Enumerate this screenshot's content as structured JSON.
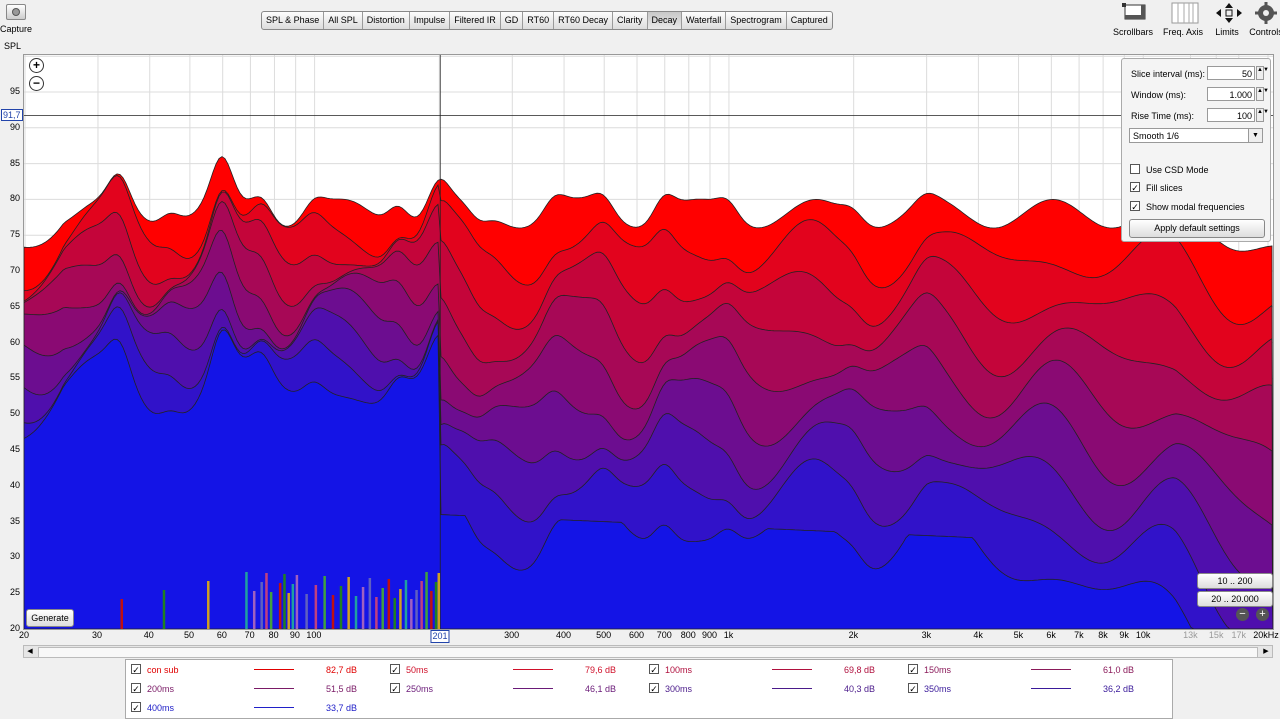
{
  "toolbar": {
    "capture_label": "Capture",
    "spl_label": "SPL",
    "tabs": [
      "SPL & Phase",
      "All SPL",
      "Distortion",
      "Impulse",
      "Filtered IR",
      "GD",
      "RT60",
      "RT60 Decay",
      "Clarity",
      "Decay",
      "Waterfall",
      "Spectrogram",
      "Captured"
    ],
    "active_tab": "Decay",
    "right_tools": [
      {
        "label": "Scrollbars",
        "icon": "scrollbars-icon"
      },
      {
        "label": "Freq. Axis",
        "icon": "freq-axis-icon"
      },
      {
        "label": "Limits",
        "icon": "limits-icon"
      },
      {
        "label": "Controls",
        "icon": "gear-icon"
      }
    ]
  },
  "graph": {
    "y_ticks": [
      "95",
      "90",
      "85",
      "80",
      "75",
      "70",
      "65",
      "60",
      "55",
      "50",
      "45",
      "40",
      "35",
      "30",
      "25",
      "20"
    ],
    "x_ticks": [
      "20",
      "30",
      "40",
      "50",
      "60",
      "70",
      "80",
      "90",
      "100",
      "300",
      "400",
      "500",
      "600",
      "700",
      "800",
      "900",
      "1k",
      "2k",
      "3k",
      "4k",
      "5k",
      "6k",
      "7k",
      "8k",
      "9k",
      "10k",
      "13k",
      "15k",
      "17k",
      "20kHz"
    ],
    "x_ticks_gray": [
      "13k",
      "15k",
      "17k"
    ],
    "cursor_y_value": "91,7",
    "cursor_x_value": "201",
    "generate_label": "Generate",
    "range_buttons": [
      "10 .. 200",
      "20 .. 20.000"
    ]
  },
  "controls": {
    "slice_interval_label": "Slice interval (ms):",
    "slice_interval_value": "50",
    "window_label": "Window (ms):",
    "window_value": "1.000",
    "rise_time_label": "Rise Time (ms):",
    "rise_time_value": "100",
    "smoothing": "Smooth 1/6",
    "use_csd_label": "Use CSD Mode",
    "use_csd": false,
    "fill_slices_label": "Fill slices",
    "fill_slices": true,
    "show_modal_label": "Show modal frequencies",
    "show_modal": true,
    "apply_label": "Apply default settings"
  },
  "legend": [
    {
      "name": "con sub",
      "value": "82,7 dB",
      "color": "#e00000",
      "checked": true
    },
    {
      "name": "50ms",
      "value": "79,6 dB",
      "color": "#d0102a",
      "checked": true
    },
    {
      "name": "100ms",
      "value": "69,8 dB",
      "color": "#b0103e",
      "checked": true
    },
    {
      "name": "150ms",
      "value": "61,0 dB",
      "color": "#8a1a5a",
      "checked": true
    },
    {
      "name": "200ms",
      "value": "51,5 dB",
      "color": "#7a1a66",
      "checked": true
    },
    {
      "name": "250ms",
      "value": "46,1 dB",
      "color": "#6a1a78",
      "checked": true
    },
    {
      "name": "300ms",
      "value": "40,3 dB",
      "color": "#4a1a8a",
      "checked": true
    },
    {
      "name": "350ms",
      "value": "36,2 dB",
      "color": "#3a1a9a",
      "checked": true
    },
    {
      "name": "400ms",
      "value": "33,7 dB",
      "color": "#2020c8",
      "checked": true
    }
  ],
  "colors": {
    "top_slice": "#ff0000",
    "bottom_slice": "#1414e6",
    "grid": "#dcdcdc"
  }
}
